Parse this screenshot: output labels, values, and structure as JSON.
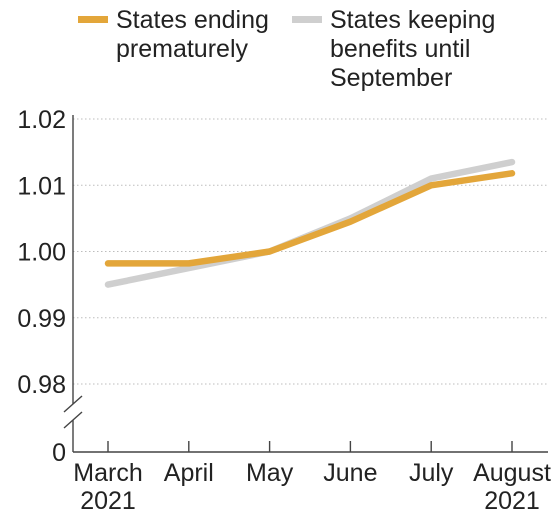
{
  "chart_data": {
    "type": "line",
    "title": "",
    "xlabel": "",
    "ylabel": "",
    "categories": [
      [
        "March",
        "2021"
      ],
      [
        "April"
      ],
      [
        "May"
      ],
      [
        "June"
      ],
      [
        "July"
      ],
      [
        "August",
        "2021"
      ]
    ],
    "y_ticks": [
      "1.02",
      "1.01",
      "1.00",
      "0.99",
      "0.98"
    ],
    "y_tick_values": [
      1.02,
      1.01,
      1.0,
      0.99,
      0.98
    ],
    "y_zero_label": "0",
    "ylim": [
      0.98,
      1.02
    ],
    "axis_break": true,
    "grid": "horizontal dotted",
    "legend_position": "top",
    "series": [
      {
        "name": [
          "States ending",
          "prematurely"
        ],
        "color": "#E3A63A",
        "values": [
          0.9982,
          0.9982,
          1.0,
          1.0045,
          1.01,
          1.0118
        ]
      },
      {
        "name": [
          "States keeping",
          "benefits until",
          "September"
        ],
        "color": "#CFCFCF",
        "values": [
          0.995,
          0.9975,
          1.0,
          1.005,
          1.011,
          1.0135
        ]
      }
    ]
  }
}
